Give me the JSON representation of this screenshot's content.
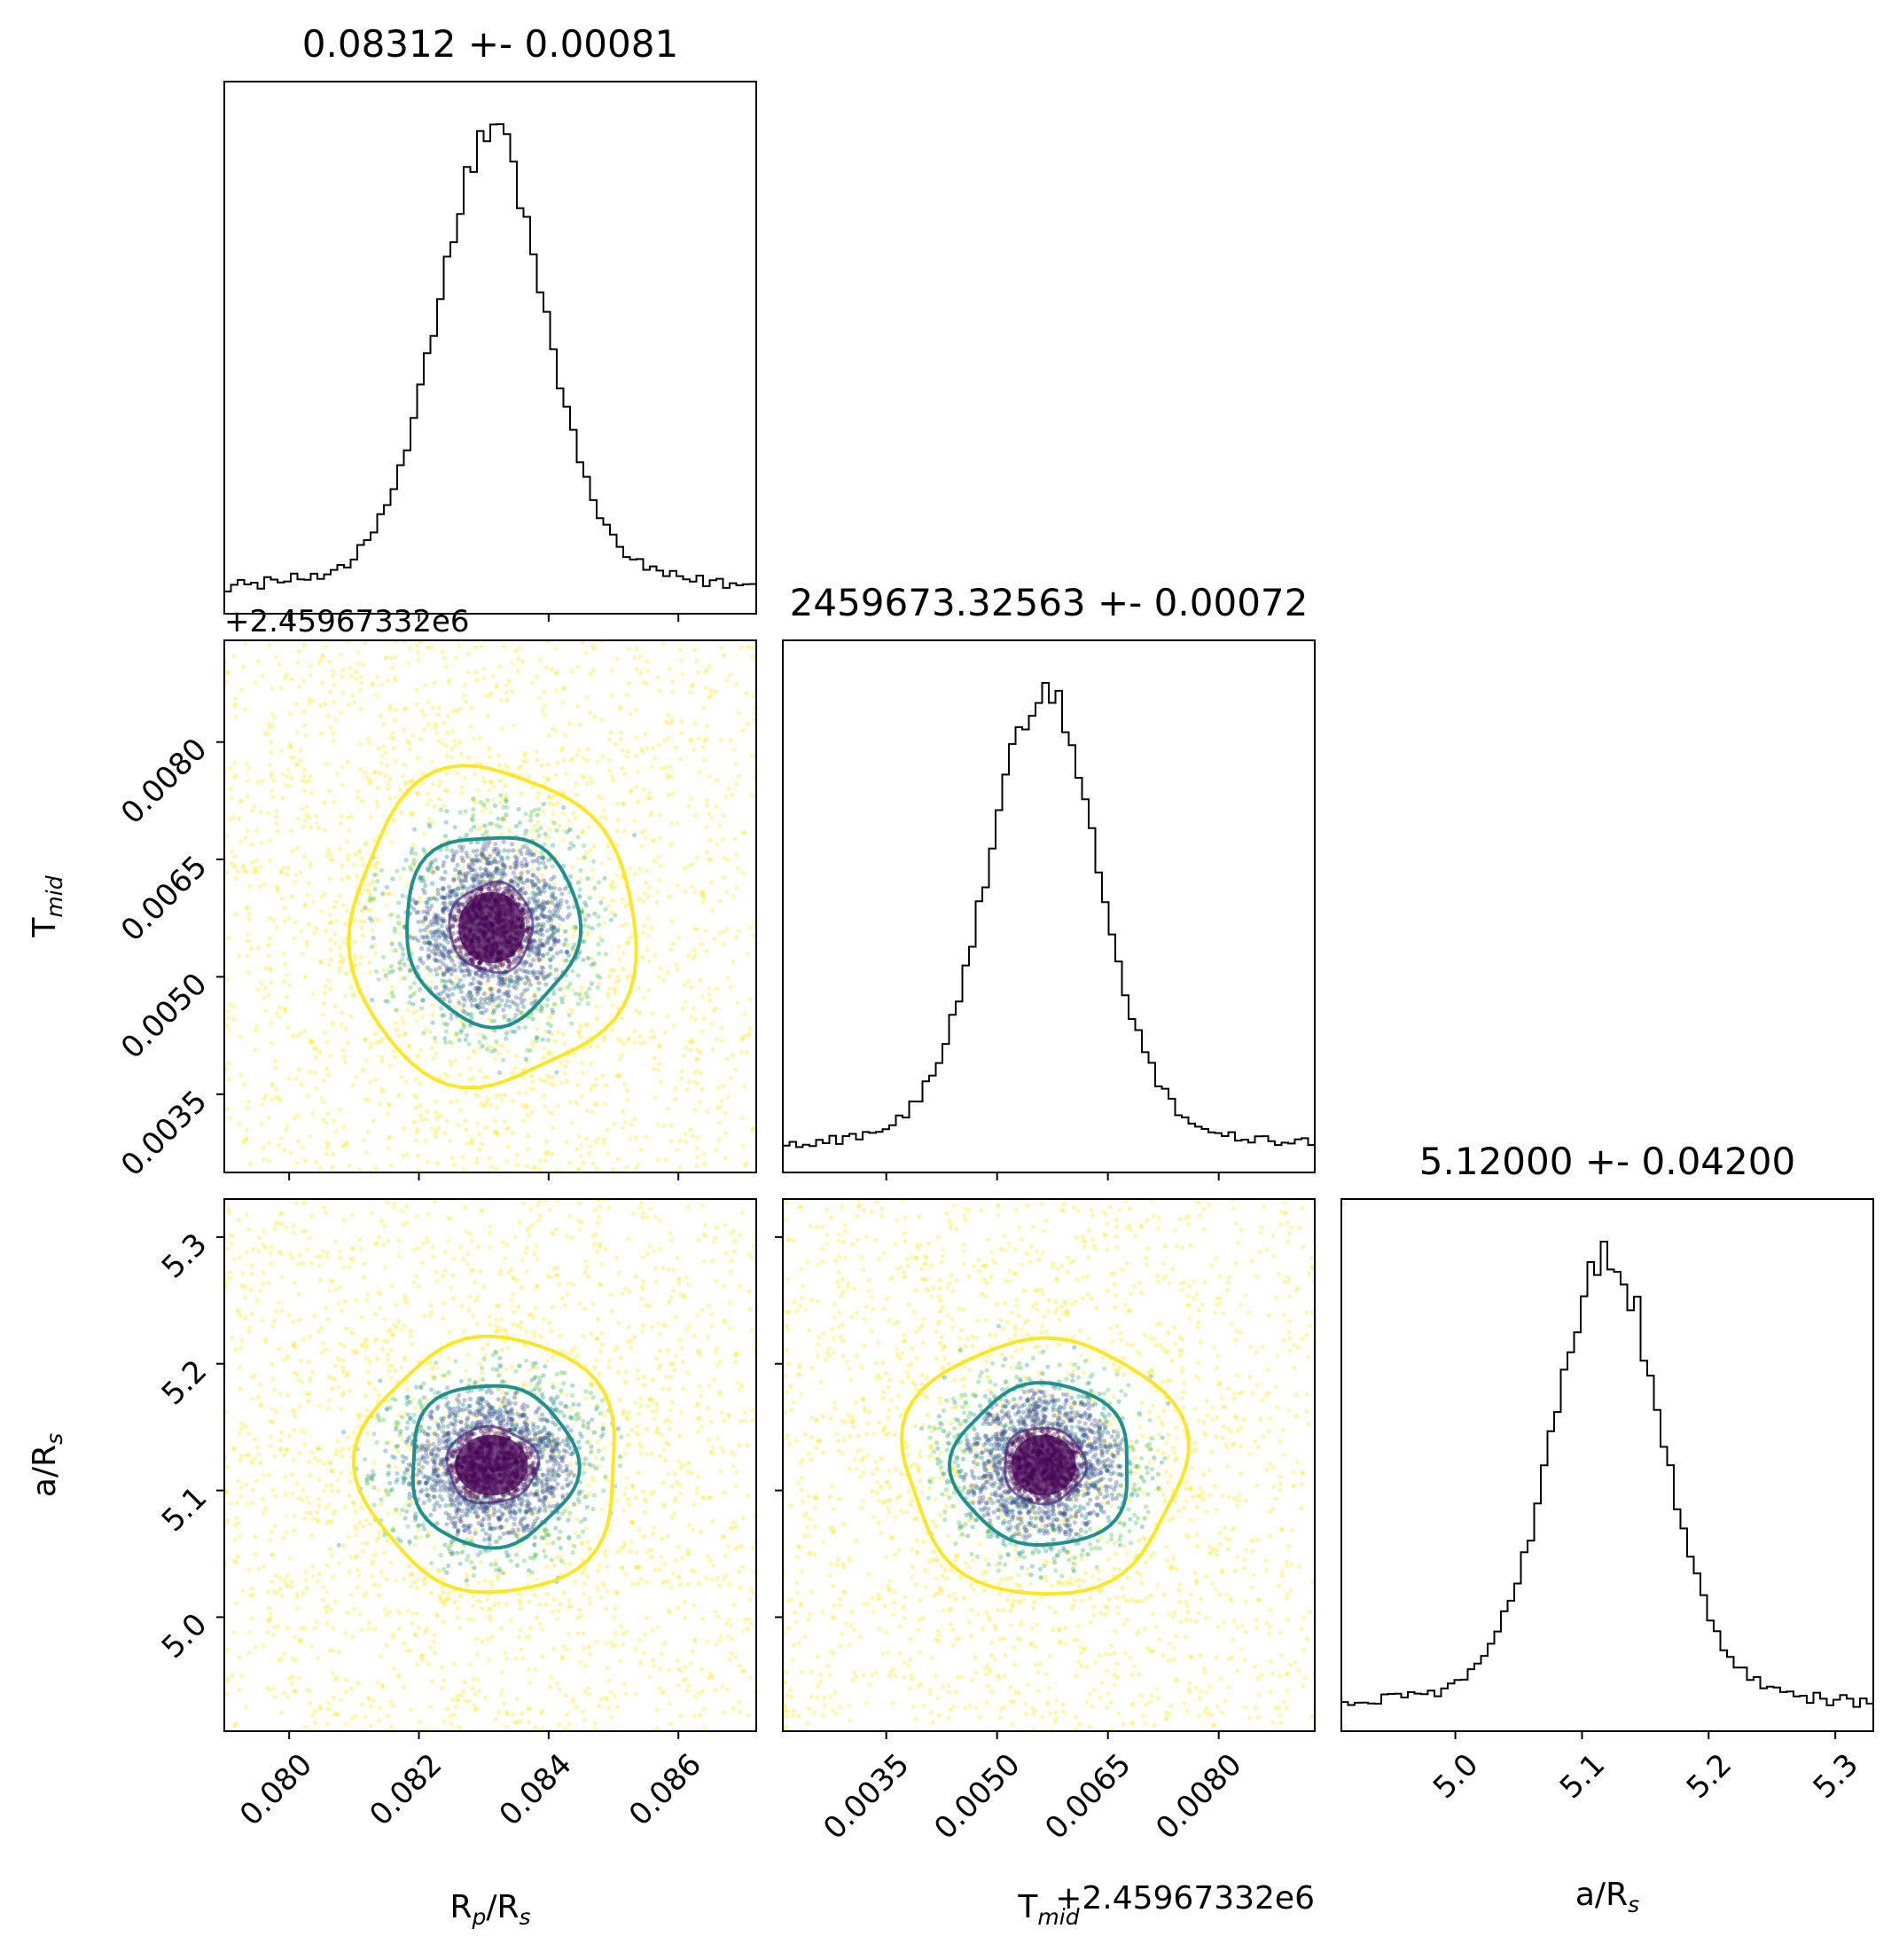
{
  "colors": {
    "hist_line": "#000000",
    "contour_1sigma": "#472c7a",
    "contour_2sigma": "#21908d",
    "contour_3sigma": "#fde725",
    "scatter_core": "#440154",
    "scatter_mid": "#3b528b",
    "scatter_2sigma": "#21908d",
    "scatter_3sigma": "#5ec962",
    "scatter_outer": "#fde725"
  },
  "chart_data": [
    {
      "id": "hist_rp",
      "type": "histogram",
      "title": "0.08312 +- 0.00081",
      "xlim": [
        0.079,
        0.0872
      ],
      "center": 0.08312,
      "sigma": 0.00081,
      "x_ticks": [
        0.08,
        0.082,
        0.084,
        0.086
      ],
      "tick_labels_shown": false
    },
    {
      "id": "scatter_rp_tmid",
      "type": "scatter",
      "x_param": "Rp/Rs",
      "y_param": "Tmid",
      "xlim": [
        0.079,
        0.0872
      ],
      "ylim": [
        0.0025,
        0.0093
      ],
      "center": [
        0.08312,
        0.00563
      ],
      "contours": [
        {
          "level": "1-sigma",
          "color": "#472c7a",
          "rx": 0.00064,
          "ry": 0.00057
        },
        {
          "level": "2-sigma",
          "color": "#21908d",
          "rx": 0.00134,
          "ry": 0.00121
        },
        {
          "level": "3-sigma",
          "color": "#fde725",
          "rx": 0.0022,
          "ry": 0.00202
        }
      ],
      "ytick_values": [
        0.0035,
        0.005,
        0.0065,
        0.008
      ],
      "ytick_labels": [
        "0.0035",
        "0.0050",
        "0.0065",
        "0.0080"
      ],
      "ylabel": "T",
      "ylabel_sub": "mid",
      "offset_label": "+2.45967332e6",
      "x_ticks": [
        0.08,
        0.082,
        0.084,
        0.086
      ],
      "tick_labels_shown_x": false
    },
    {
      "id": "hist_tmid",
      "type": "histogram",
      "title": "2459673.32563 +- 0.00072",
      "xlim": [
        0.0021,
        0.0093
      ],
      "center": 0.00563,
      "sigma": 0.00072,
      "x_ticks": [
        0.0035,
        0.005,
        0.0065,
        0.008
      ],
      "tick_labels_shown": false
    },
    {
      "id": "scatter_rp_ars",
      "type": "scatter",
      "x_param": "Rp/Rs",
      "y_param": "a/Rs",
      "xlim": [
        0.079,
        0.0872
      ],
      "ylim": [
        4.91,
        5.33
      ],
      "center": [
        0.08312,
        5.12
      ],
      "contours": [
        {
          "level": "1-sigma",
          "color": "#472c7a",
          "rx": 0.0007,
          "ry": 0.03
        },
        {
          "level": "2-sigma",
          "color": "#21908d",
          "rx": 0.00128,
          "ry": 0.064
        },
        {
          "level": "3-sigma",
          "color": "#fde725",
          "rx": 0.002,
          "ry": 0.101
        }
      ],
      "ytick_values": [
        5.0,
        5.1,
        5.2,
        5.3
      ],
      "ytick_labels": [
        "5.0",
        "5.1",
        "5.2",
        "5.3"
      ],
      "ylabel": "a/R",
      "ylabel_sub": "s",
      "xtick_values": [
        0.08,
        0.082,
        0.084,
        0.086
      ],
      "xtick_labels": [
        "0.080",
        "0.082",
        "0.084",
        "0.086"
      ],
      "xlabel": "R",
      "xlabel_sub": "p",
      "xlabel_mid": "/R",
      "xlabel_sub2": "s"
    },
    {
      "id": "scatter_tmid_ars",
      "type": "scatter",
      "x_param": "Tmid",
      "y_param": "a/Rs",
      "xlim": [
        0.0021,
        0.0093
      ],
      "ylim": [
        4.91,
        5.33
      ],
      "center": [
        0.00563,
        5.12
      ],
      "contours": [
        {
          "level": "1-sigma",
          "color": "#472c7a",
          "rx": 0.00055,
          "ry": 0.03
        },
        {
          "level": "2-sigma",
          "color": "#21908d",
          "rx": 0.0012,
          "ry": 0.064
        },
        {
          "level": "3-sigma",
          "color": "#fde725",
          "rx": 0.0019,
          "ry": 0.101
        }
      ],
      "xtick_values": [
        0.0035,
        0.005,
        0.0065,
        0.008
      ],
      "xtick_labels": [
        "0.0035",
        "0.0050",
        "0.0065",
        "0.0080"
      ],
      "xlabel": "T",
      "xlabel_sub": "mid",
      "offset_label": "+2.45967332e6",
      "y_ticks": [
        5.0,
        5.1,
        5.2,
        5.3
      ],
      "tick_labels_shown_y": false
    },
    {
      "id": "hist_ars",
      "type": "histogram",
      "title": "5.12000 +- 0.04200",
      "xlim": [
        4.91,
        5.33
      ],
      "center": 5.12,
      "sigma": 0.042,
      "xtick_values": [
        5.0,
        5.1,
        5.2,
        5.3
      ],
      "xtick_labels": [
        "5.0",
        "5.1",
        "5.2",
        "5.3"
      ],
      "xlabel": "a/R",
      "xlabel_sub": "s"
    }
  ]
}
